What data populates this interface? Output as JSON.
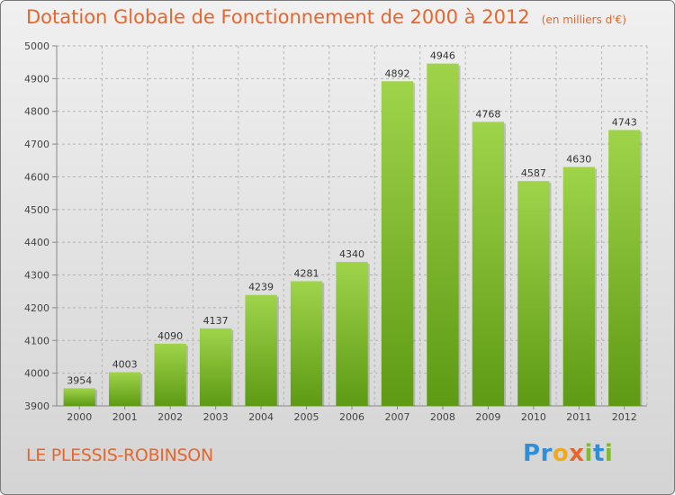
{
  "header": {
    "title": "Dotation Globale de Fonctionnement de 2000 à 2012",
    "unit_note": "(en milliers d'€)"
  },
  "footer": {
    "commune": "LE PLESSIS-ROBINSON",
    "logo_text": "Proxiti"
  },
  "colors": {
    "title": "#e8662b",
    "bar_top": "#9fd44a",
    "bar_bottom": "#5e9a14",
    "grid": "#b5b5b5"
  },
  "chart_data": {
    "type": "bar",
    "categories": [
      "2000",
      "2001",
      "2002",
      "2003",
      "2004",
      "2005",
      "2006",
      "2007",
      "2008",
      "2009",
      "2010",
      "2011",
      "2012"
    ],
    "values": [
      3954,
      4003,
      4090,
      4137,
      4239,
      4281,
      4340,
      4892,
      4946,
      4768,
      4587,
      4630,
      4743
    ],
    "ylim": [
      3900,
      5000
    ],
    "yticks": [
      3900,
      4000,
      4100,
      4200,
      4300,
      4400,
      4500,
      4600,
      4700,
      4800,
      4900,
      5000
    ],
    "grid": true
  }
}
